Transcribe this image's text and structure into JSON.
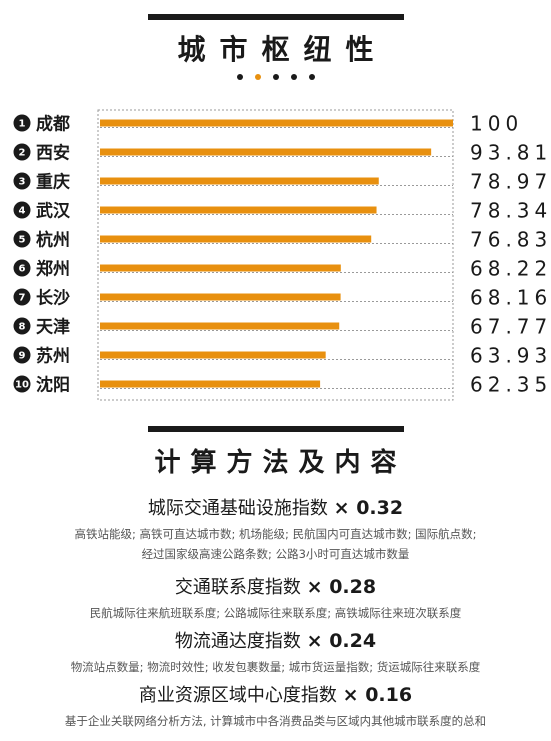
{
  "title": "城市枢纽性",
  "pagination": {
    "count": 5,
    "active_index": 1
  },
  "chart_data": {
    "type": "bar",
    "orientation": "horizontal",
    "title": "城市枢纽性",
    "categories": [
      "成都",
      "西安",
      "重庆",
      "武汉",
      "杭州",
      "郑州",
      "长沙",
      "天津",
      "苏州",
      "沈阳"
    ],
    "ranks": [
      "1",
      "2",
      "3",
      "4",
      "5",
      "6",
      "7",
      "8",
      "9",
      "10"
    ],
    "values": [
      100,
      93.81,
      78.97,
      78.34,
      76.83,
      68.22,
      68.16,
      67.77,
      63.93,
      62.35
    ],
    "value_labels": [
      "100",
      "93.81",
      "78.97",
      "78.34",
      "76.83",
      "68.22",
      "68.16",
      "67.77",
      "63.93",
      "62.35"
    ],
    "xlim": [
      0,
      100
    ],
    "bar_color": "#e8900f",
    "grid": false
  },
  "methods_title": "计算方法及内容",
  "methods": [
    {
      "name": "城际交通基础设施指数",
      "weight": "× 0.32",
      "desc": [
        "高铁站能级; 高铁可直达城市数; 机场能级; 民航国内可直达城市数; 国际航点数;",
        "经过国家级高速公路条数; 公路3小时可直达城市数量"
      ]
    },
    {
      "name": "交通联系度指数",
      "weight": "× 0.28",
      "desc": [
        "民航城际往来航班联系度; 公路城际往来联系度; 高铁城际往来班次联系度"
      ]
    },
    {
      "name": "物流通达度指数",
      "weight": "× 0.24",
      "desc": [
        "物流站点数量; 物流时效性; 收发包裹数量; 城市货运量指数; 货运城际往来联系度"
      ]
    },
    {
      "name": "商业资源区域中心度指数",
      "weight": "× 0.16",
      "desc": [
        "基于企业关联网络分析方法, 计算城市中各消费品类与区域内其他城市联系度的总和"
      ]
    }
  ]
}
